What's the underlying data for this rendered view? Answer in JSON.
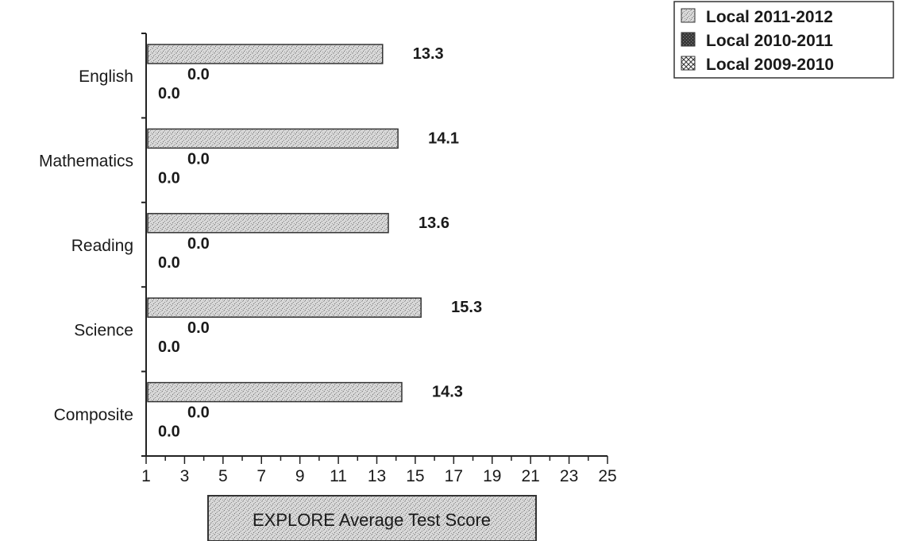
{
  "chart_data": {
    "type": "bar",
    "orientation": "horizontal",
    "categories": [
      "English",
      "Mathematics",
      "Reading",
      "Science",
      "Composite"
    ],
    "series": [
      {
        "name": "Local 2011-2012",
        "values": [
          13.3,
          14.1,
          13.6,
          15.3,
          14.3
        ],
        "labels": [
          "13.3",
          "14.1",
          "13.6",
          "15.3",
          "14.3"
        ],
        "pattern": "light-stipple"
      },
      {
        "name": "Local 2010-2011",
        "values": [
          0.0,
          0.0,
          0.0,
          0.0,
          0.0
        ],
        "labels": [
          "0.0",
          "0.0",
          "0.0",
          "0.0",
          "0.0"
        ],
        "pattern": "dark-stipple"
      },
      {
        "name": "Local 2009-2010",
        "values": [
          0.0,
          0.0,
          0.0,
          0.0,
          0.0
        ],
        "labels": [
          "0.0",
          "0.0",
          "0.0",
          "0.0",
          "0.0"
        ],
        "pattern": "crosshatch"
      }
    ],
    "xlabel": "EXPLORE Average Test Score",
    "ylabel": "",
    "xlim": [
      1,
      25
    ],
    "ticks": [
      "1",
      "3",
      "5",
      "7",
      "9",
      "11",
      "13",
      "15",
      "17",
      "19",
      "21",
      "23",
      "25"
    ],
    "grid": false,
    "legend_position": "top-right",
    "colors": {
      "bar_fill": "#cfcfcf",
      "bar_edge": "#333333",
      "text": "#1a1a1a"
    }
  }
}
